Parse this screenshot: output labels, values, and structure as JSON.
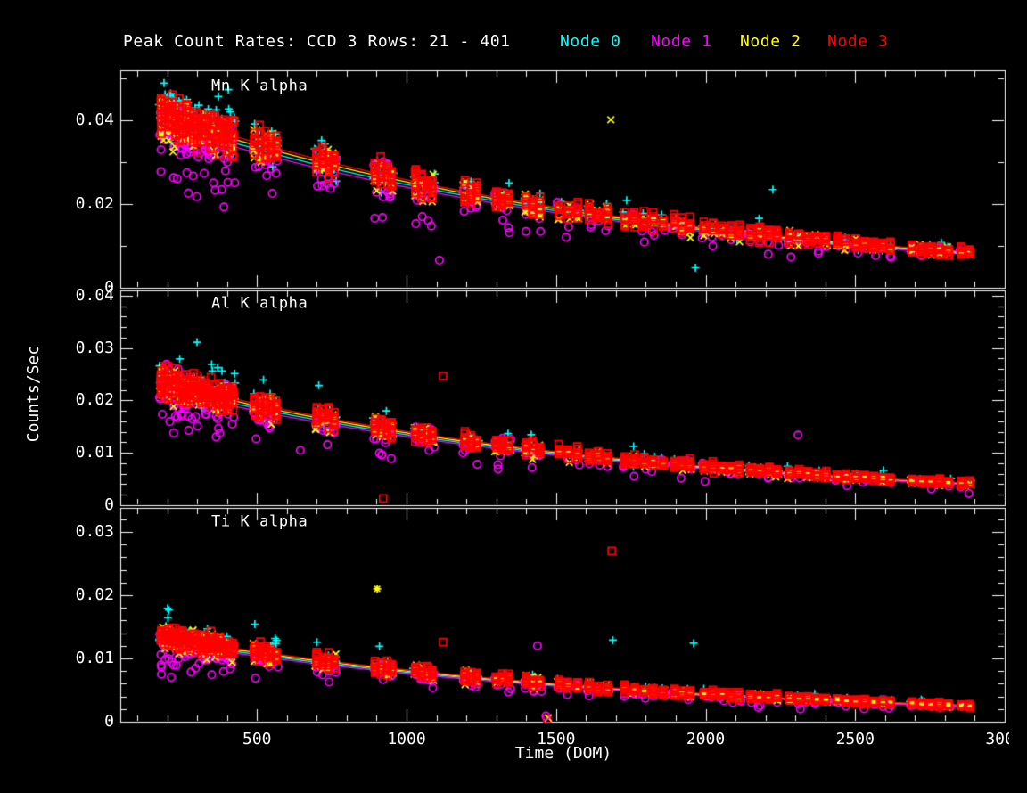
{
  "figure": {
    "background": "#000000",
    "foreground": "#ffffff"
  },
  "header": {
    "title": "Peak Count Rates: CCD 3 Rows: 21 - 401"
  },
  "legend": {
    "position": "top-right",
    "items": [
      {
        "label": "Node 0",
        "color": "#00ffff"
      },
      {
        "label": "Node 1",
        "color": "#ff00ff"
      },
      {
        "label": "Node 2",
        "color": "#ffff00"
      },
      {
        "label": "Node 3",
        "color": "#ff0000"
      }
    ]
  },
  "chart_data": {
    "type": "scatter",
    "title": "Peak Count Rates: CCD 3 Rows: 21 - 401",
    "xlabel": "Time (DOM)",
    "ylabel": "Counts/Sec",
    "xlim": [
      0,
      3000
    ],
    "x_frame_min": 43,
    "grid": false,
    "xticks": {
      "major": [
        500,
        1000,
        1500,
        2000,
        2500,
        3000
      ],
      "labels": [
        "500",
        "1000",
        "1500",
        "2000",
        "2500",
        "3000"
      ],
      "minor_step": 100
    },
    "nodes": [
      {
        "name": "Node 0",
        "color": "#00ffff",
        "marker": "plus",
        "bias": 1.03,
        "line_bias": 0.975,
        "sd": 0.1,
        "x_jitter": 8,
        "extra_points": -2
      },
      {
        "name": "Node 1",
        "color": "#ff00ff",
        "marker": "circle",
        "bias": 0.94,
        "line_bias": 0.95,
        "sd": 0.14,
        "x_jitter": 7,
        "extra_points": -2
      },
      {
        "name": "Node 2",
        "color": "#ffff00",
        "marker": "x",
        "bias": 1.0,
        "line_bias": 1.0,
        "sd": 0.1,
        "x_jitter": 6,
        "extra_points": -1
      },
      {
        "name": "Node 3",
        "color": "#ff0000",
        "marker": "square",
        "bias": 1.02,
        "line_bias": 1.02,
        "sd": 0.09,
        "x_jitter": 1.5,
        "extra_points": 4
      }
    ],
    "panels": [
      {
        "label": "Mn K alpha",
        "ylim": [
          0,
          0.052
        ],
        "yminor": 0.01,
        "yticks": [
          {
            "v": 0,
            "label": "0"
          },
          {
            "v": 0.02,
            "label": "0.02"
          },
          {
            "v": 0.04,
            "label": "0.04"
          }
        ],
        "decay": {
          "A": 0.0456,
          "tau": 1701
        },
        "trend_summary": "rate falls from ~0.040 c/s at DOM 180 to ~0.0075 c/s at DOM 2900"
      },
      {
        "label": "Al K alpha",
        "ylim": [
          0,
          0.041
        ],
        "yminor": 0.002,
        "yticks": [
          {
            "v": 0,
            "label": "0"
          },
          {
            "v": 0.01,
            "label": "0.01"
          },
          {
            "v": 0.02,
            "label": "0.02"
          },
          {
            "v": 0.03,
            "label": "0.03"
          },
          {
            "v": 0.04,
            "label": "0.04"
          }
        ],
        "decay": {
          "A": 0.0261,
          "tau": 1568
        },
        "trend_summary": "rate falls from ~0.023 c/s at DOM 180 to ~0.004 c/s at DOM 2900"
      },
      {
        "label": "Ti K alpha",
        "ylim": [
          0,
          0.0338
        ],
        "yminor": 0.002,
        "yticks": [
          {
            "v": 0,
            "label": "0"
          },
          {
            "v": 0.01,
            "label": "0.01"
          },
          {
            "v": 0.02,
            "label": "0.02"
          },
          {
            "v": 0.03,
            "label": "0.03"
          }
        ],
        "decay": {
          "A": 0.0148,
          "tau": 1632
        },
        "trend_summary": "rate falls from ~0.013 c/s at DOM 180 to ~0.0026 c/s at DOM 2900"
      }
    ],
    "epochs": [
      [
        180,
        8
      ],
      [
        192,
        8
      ],
      [
        204,
        8
      ],
      [
        216,
        8
      ],
      [
        228,
        8
      ],
      [
        240,
        8
      ],
      [
        252,
        8
      ],
      [
        264,
        8
      ],
      [
        276,
        8
      ],
      [
        288,
        8
      ],
      [
        300,
        8
      ],
      [
        315,
        7
      ],
      [
        330,
        7
      ],
      [
        345,
        7
      ],
      [
        360,
        7
      ],
      [
        375,
        7
      ],
      [
        390,
        7
      ],
      [
        405,
        7
      ],
      [
        420,
        7
      ],
      [
        492,
        6
      ],
      [
        510,
        6
      ],
      [
        528,
        6
      ],
      [
        546,
        6
      ],
      [
        564,
        6
      ],
      [
        700,
        6
      ],
      [
        720,
        6
      ],
      [
        740,
        6
      ],
      [
        758,
        6
      ],
      [
        895,
        6
      ],
      [
        915,
        6
      ],
      [
        935,
        6
      ],
      [
        950,
        6
      ],
      [
        1030,
        5
      ],
      [
        1050,
        5
      ],
      [
        1070,
        5
      ],
      [
        1086,
        5
      ],
      [
        1195,
        5
      ],
      [
        1215,
        5
      ],
      [
        1235,
        5
      ],
      [
        1300,
        5
      ],
      [
        1320,
        5
      ],
      [
        1342,
        5
      ],
      [
        1400,
        5
      ],
      [
        1422,
        5
      ],
      [
        1445,
        5
      ],
      [
        1510,
        4
      ],
      [
        1540,
        4
      ],
      [
        1572,
        4
      ],
      [
        1610,
        4
      ],
      [
        1640,
        4
      ],
      [
        1672,
        4
      ],
      [
        1730,
        4
      ],
      [
        1762,
        4
      ],
      [
        1794,
        4
      ],
      [
        1826,
        4
      ],
      [
        1858,
        4
      ],
      [
        1895,
        4
      ],
      [
        1920,
        4
      ],
      [
        1947,
        4
      ],
      [
        1995,
        4
      ],
      [
        2025,
        4
      ],
      [
        2055,
        4
      ],
      [
        2085,
        4
      ],
      [
        2112,
        4
      ],
      [
        2150,
        4
      ],
      [
        2180,
        4
      ],
      [
        2212,
        4
      ],
      [
        2238,
        4
      ],
      [
        2280,
        4
      ],
      [
        2312,
        4
      ],
      [
        2342,
        4
      ],
      [
        2372,
        4
      ],
      [
        2402,
        4
      ],
      [
        2440,
        4
      ],
      [
        2470,
        4
      ],
      [
        2502,
        4
      ],
      [
        2532,
        4
      ],
      [
        2562,
        4
      ],
      [
        2592,
        4
      ],
      [
        2618,
        4
      ],
      [
        2690,
        4
      ],
      [
        2722,
        4
      ],
      [
        2752,
        4
      ],
      [
        2782,
        4
      ],
      [
        2812,
        4
      ],
      [
        2855,
        3
      ],
      [
        2882,
        3
      ]
    ],
    "outliers": [
      {
        "panel": 0,
        "node": 2,
        "x": 1683,
        "y": 0.0402
      },
      {
        "panel": 0,
        "node": 0,
        "x": 2225,
        "y": 0.0235
      },
      {
        "panel": 0,
        "node": 1,
        "x": 1110,
        "y": 0.0066
      },
      {
        "panel": 0,
        "node": 0,
        "x": 1966,
        "y": 0.0048
      },
      {
        "panel": 1,
        "node": 3,
        "x": 1122,
        "y": 0.0247
      },
      {
        "panel": 1,
        "node": 1,
        "x": 2309,
        "y": 0.0134
      },
      {
        "panel": 1,
        "node": 1,
        "x": 645,
        "y": 0.0105
      },
      {
        "panel": 1,
        "node": 3,
        "x": 922,
        "y": 0.0013
      },
      {
        "panel": 2,
        "node": 3,
        "x": 1686,
        "y": 0.027
      },
      {
        "panel": 2,
        "node": 2,
        "x": 902,
        "y": 0.021,
        "marker": "asterisk"
      },
      {
        "panel": 2,
        "node": 0,
        "x": 1690,
        "y": 0.0129
      },
      {
        "panel": 2,
        "node": 0,
        "x": 1960,
        "y": 0.0124
      },
      {
        "panel": 2,
        "node": 1,
        "x": 1438,
        "y": 0.012
      },
      {
        "panel": 2,
        "node": 3,
        "x": 1122,
        "y": 0.0126
      },
      {
        "panel": 2,
        "node": 3,
        "x": 1470,
        "y": 0.0004
      },
      {
        "panel": 2,
        "node": 2,
        "x": 1474,
        "y": 0.0006
      },
      {
        "panel": 2,
        "node": 1,
        "x": 1466,
        "y": 0.0009
      }
    ],
    "seed": 7
  }
}
